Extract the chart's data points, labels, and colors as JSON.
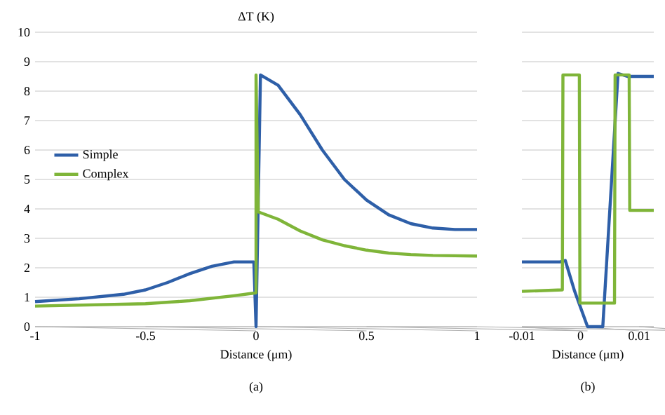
{
  "chart_data": [
    {
      "type": "line",
      "ylabel": "ΔT (K)",
      "xlabel": "Distance (μm)",
      "annotations": [
        "(a)"
      ],
      "xlim": [
        -1,
        1
      ],
      "ylim": [
        0,
        10
      ],
      "xticks": [
        -1,
        -0.5,
        0,
        0.5,
        1
      ],
      "yticks": [
        0,
        1,
        2,
        3,
        4,
        5,
        6,
        7,
        8,
        9,
        10
      ],
      "grid": "y",
      "legend": "left",
      "line_style": "solid",
      "series": [
        {
          "name": "Simple",
          "color": "#2e5fa8",
          "x": [
            -1,
            -0.8,
            -0.6,
            -0.5,
            -0.4,
            -0.3,
            -0.2,
            -0.1,
            -0.01,
            0,
            0.02,
            0.1,
            0.2,
            0.3,
            0.4,
            0.5,
            0.6,
            0.7,
            0.8,
            0.9,
            1
          ],
          "values": [
            0.85,
            0.95,
            1.1,
            1.25,
            1.5,
            1.8,
            2.05,
            2.2,
            2.2,
            0,
            8.55,
            8.2,
            7.2,
            6.0,
            5.0,
            4.3,
            3.8,
            3.5,
            3.35,
            3.3,
            3.3
          ]
        },
        {
          "name": "Complex",
          "color": "#7fb539",
          "x": [
            -1,
            -0.5,
            -0.3,
            -0.1,
            0,
            0,
            0.01,
            0.1,
            0.2,
            0.3,
            0.4,
            0.5,
            0.6,
            0.7,
            0.8,
            1
          ],
          "values": [
            0.7,
            0.78,
            0.88,
            1.05,
            1.15,
            8.55,
            3.9,
            3.65,
            3.25,
            2.95,
            2.75,
            2.6,
            2.5,
            2.45,
            2.42,
            2.4
          ]
        }
      ]
    },
    {
      "type": "line",
      "xlabel": "Distance (μm)",
      "annotations": [
        "(b)"
      ],
      "xlim": [
        -0.01,
        0.0125
      ],
      "ylim": [
        0,
        10
      ],
      "xticks": [
        -0.01,
        0,
        0.01
      ],
      "yticks": [
        0,
        1,
        2,
        3,
        4,
        5,
        6,
        7,
        8,
        9,
        10
      ],
      "grid": "y",
      "tick_labels": "x",
      "line_style": "solid",
      "series": [
        {
          "color": "#2e5fa8",
          "x": [
            -0.01,
            -0.0035,
            -0.0026,
            -0.001,
            0.0012,
            0.0038,
            0.0064,
            0.008,
            0.0125
          ],
          "values": [
            2.2,
            2.2,
            2.25,
            1.2,
            0,
            0,
            8.6,
            8.5,
            8.5
          ]
        },
        {
          "color": "#7fb539",
          "x": [
            -0.01,
            -0.0031,
            -0.003,
            -0.0002,
            -0.0001,
            0.0058,
            0.0059,
            0.0083,
            0.0084,
            0.0125
          ],
          "values": [
            1.2,
            1.25,
            8.55,
            8.55,
            0.8,
            0.8,
            8.55,
            8.55,
            3.95,
            3.95
          ]
        }
      ]
    }
  ]
}
